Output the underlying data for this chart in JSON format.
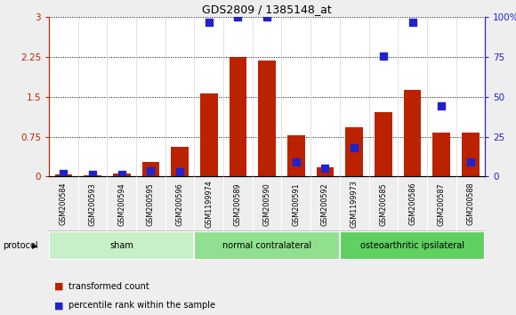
{
  "title": "GDS2809 / 1385148_at",
  "categories": [
    "GSM200584",
    "GSM200593",
    "GSM200594",
    "GSM200595",
    "GSM200596",
    "GSM1199974",
    "GSM200589",
    "GSM200590",
    "GSM200591",
    "GSM200592",
    "GSM1199973",
    "GSM200585",
    "GSM200586",
    "GSM200587",
    "GSM200588"
  ],
  "red_values": [
    0.04,
    0.02,
    0.05,
    0.27,
    0.55,
    1.57,
    2.25,
    2.19,
    0.77,
    0.17,
    0.92,
    1.21,
    1.63,
    0.82,
    0.82
  ],
  "blue_values": [
    0.06,
    0.03,
    0.04,
    0.1,
    0.09,
    2.91,
    3.0,
    3.0,
    0.27,
    0.15,
    0.54,
    2.27,
    2.91,
    1.33,
    0.27
  ],
  "groups": [
    {
      "label": "sham",
      "start": 0,
      "end": 5,
      "color": "#c8f0c8"
    },
    {
      "label": "normal contralateral",
      "start": 5,
      "end": 10,
      "color": "#90e090"
    },
    {
      "label": "osteoarthritic ipsilateral",
      "start": 10,
      "end": 15,
      "color": "#60d060"
    }
  ],
  "protocol_label": "protocol",
  "red_color": "#bb2200",
  "blue_color": "#2222cc",
  "ylim_left": [
    0,
    3
  ],
  "ylim_right": [
    0,
    100
  ],
  "yticks_left": [
    0,
    0.75,
    1.5,
    2.25,
    3.0
  ],
  "yticks_right": [
    0,
    25,
    50,
    75,
    100
  ],
  "ytick_labels_left": [
    "0",
    "0.75",
    "1.5",
    "2.25",
    "3"
  ],
  "ytick_labels_right": [
    "0",
    "25",
    "50",
    "75",
    "100%"
  ],
  "bar_width": 0.6,
  "blue_marker_size": 30,
  "legend_items": [
    {
      "label": "transformed count",
      "color": "#bb2200"
    },
    {
      "label": "percentile rank within the sample",
      "color": "#2222cc"
    }
  ],
  "background_color": "#eeeeee",
  "plot_bg_color": "#ffffff",
  "names_bg_color": "#cccccc"
}
